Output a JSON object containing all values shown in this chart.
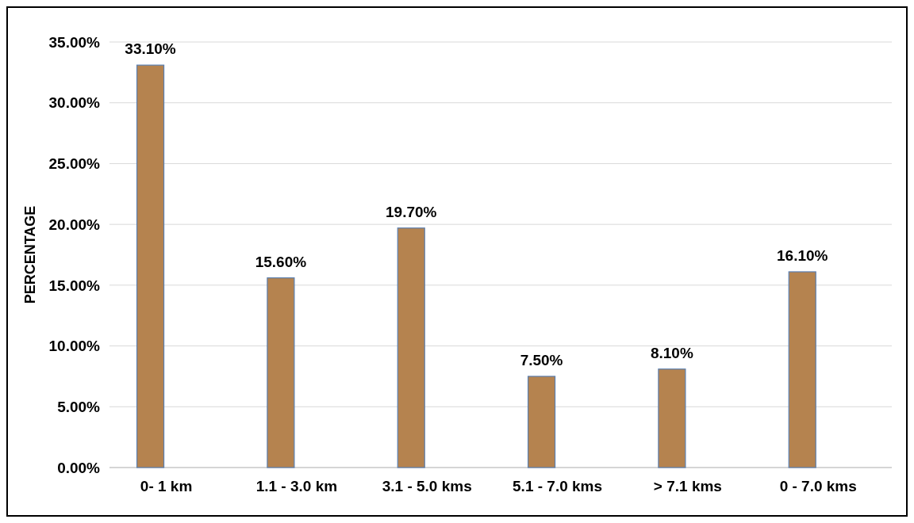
{
  "chart_data": {
    "type": "bar",
    "ylabel": "PERCENTAGE",
    "categories": [
      "0- 1 km",
      "1.1 - 3.0 km",
      "3.1 - 5.0 kms",
      "5.1 - 7.0 kms",
      "> 7.1 kms",
      "0 - 7.0 kms"
    ],
    "values": [
      33.1,
      15.6,
      19.7,
      7.5,
      8.1,
      16.1
    ],
    "value_labels": [
      "33.10%",
      "15.60%",
      "19.70%",
      "7.50%",
      "8.10%",
      "16.10%"
    ],
    "color": "#b5834f",
    "ylim": [
      0,
      35
    ],
    "yticks": [
      {
        "value": 0,
        "label": "0.00%"
      },
      {
        "value": 5,
        "label": "5.00%"
      },
      {
        "value": 10,
        "label": "10.00%"
      },
      {
        "value": 15,
        "label": "15.00%"
      },
      {
        "value": 20,
        "label": "20.00%"
      },
      {
        "value": 25,
        "label": "25.00%"
      },
      {
        "value": 30,
        "label": "30.00%"
      },
      {
        "value": 35,
        "label": "35.00%"
      }
    ],
    "grid": "y"
  }
}
